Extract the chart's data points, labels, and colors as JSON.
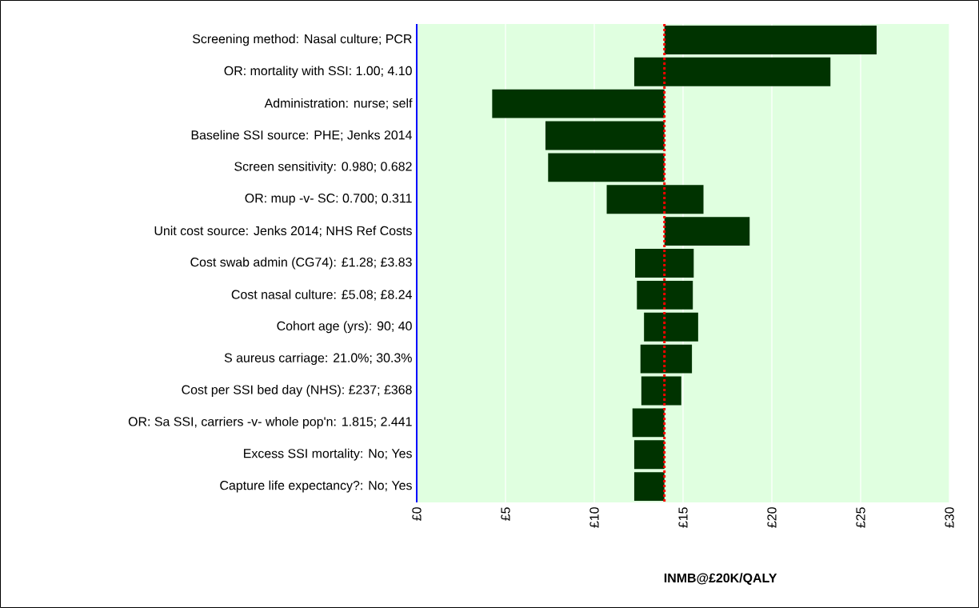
{
  "chart_data": {
    "type": "bar",
    "orientation": "horizontal",
    "xlabel": "INMB@£20K/QALY",
    "categories": [
      "Screening method: Nasal culture; PCR",
      "OR: mortality with SSI: 1.00; 4.10",
      "Administration: nurse; self",
      "Baseline SSI source: PHE; Jenks 2014",
      "Screen sensitivity: 0.980; 0.682",
      "OR: mup -v- SC: 0.700; 0.311",
      "Unit cost source: Jenks 2014; NHS Ref Costs",
      "Cost swab admin (CG74): £1.28; £3.83",
      "Cost  nasal culture: £5.08; £8.24",
      "Cohort age (yrs): 90; 40",
      "S aureus carriage: 21.0%; 30.3%",
      "Cost per SSI bed day (NHS): £237; £368",
      "OR: Sa SSI, carriers -v- whole pop'n: 1.815; 2.441",
      "Excess SSI mortality: No; Yes",
      "Capture life expectancy?: No; Yes"
    ],
    "base": [
      13.95,
      12.25,
      4.25,
      7.25,
      7.4,
      10.7,
      13.95,
      12.3,
      12.4,
      12.8,
      12.6,
      12.65,
      12.15,
      12.25,
      12.25
    ],
    "values": [
      11.95,
      11.05,
      9.7,
      6.7,
      6.55,
      5.45,
      4.8,
      3.3,
      3.15,
      3.05,
      2.9,
      2.25,
      1.8,
      1.7,
      1.7
    ],
    "color": "#003300",
    "xlim": [
      0,
      30
    ],
    "xticks": [
      {
        "value": 0,
        "label": "£0"
      },
      {
        "value": 5,
        "label": "£5"
      },
      {
        "value": 10,
        "label": "£10"
      },
      {
        "value": 15,
        "label": "£15"
      },
      {
        "value": 20,
        "label": "£20"
      },
      {
        "value": 25,
        "label": "£25"
      },
      {
        "value": 30,
        "label": "£30"
      }
    ],
    "grid": "x",
    "ref_lines": [
      {
        "axis": "x",
        "value": 13.95,
        "color": "#ff0000",
        "line_style": "dotted"
      }
    ]
  }
}
